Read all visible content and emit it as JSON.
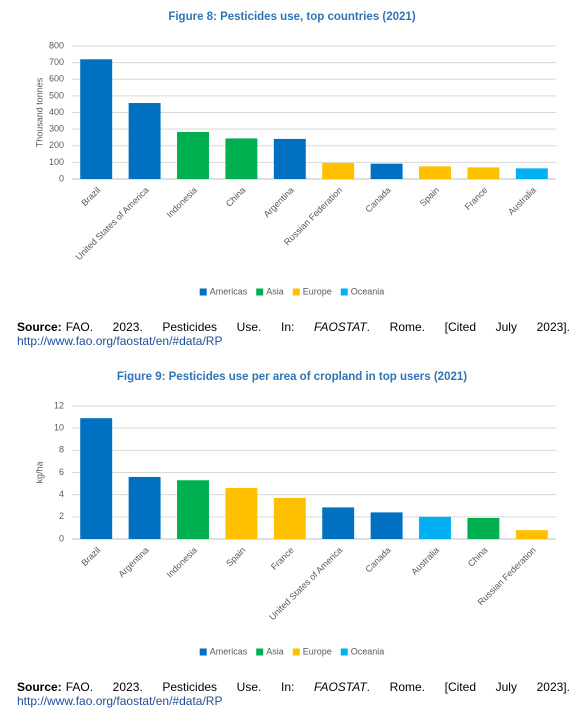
{
  "chart_data": [
    {
      "type": "bar",
      "title": "Figure 8: Pesticides use, top countries (2021)",
      "ylabel": "Thousand tonnes",
      "categories": [
        "Brazil",
        "United States of America",
        "Indonesia",
        "China",
        "Argentina",
        "Russian Federation",
        "Canada",
        "Spain",
        "France",
        "Australia"
      ],
      "series": [
        {
          "name": "Americas",
          "color": "#0070c0",
          "values": [
            720,
            457,
            null,
            null,
            241,
            null,
            92,
            null,
            null,
            null
          ]
        },
        {
          "name": "Asia",
          "color": "#00b050",
          "values": [
            null,
            null,
            283,
            244,
            null,
            null,
            null,
            null,
            null,
            null
          ]
        },
        {
          "name": "Europe",
          "color": "#ffc000",
          "values": [
            null,
            null,
            null,
            null,
            null,
            97,
            null,
            76,
            70,
            null
          ]
        },
        {
          "name": "Oceania",
          "color": "#00b0f0",
          "values": [
            null,
            null,
            null,
            null,
            null,
            null,
            null,
            null,
            null,
            64
          ]
        }
      ],
      "ylim": [
        0,
        800
      ],
      "yticks": [
        0,
        100,
        200,
        300,
        400,
        500,
        600,
        700,
        800
      ],
      "grid": true,
      "legend": "bottom",
      "source": {
        "label": "Source:",
        "text": "FAO. 2023. Pesticides Use. In:",
        "italic": "FAOSTAT",
        "text2": ". Rome. [Cited July 2023].",
        "url": "http://www.fao.org/faostat/en/#data/RP"
      }
    },
    {
      "type": "bar",
      "title": "Figure 9: Pesticides use per area of cropland in top users (2021)",
      "ylabel": "kg/ha",
      "categories": [
        "Brazil",
        "Argentina",
        "Indonesia",
        "Spain",
        "France",
        "United States of America",
        "Canada",
        "Australia",
        "China",
        "Russian Federation"
      ],
      "series": [
        {
          "name": "Americas",
          "color": "#0070c0",
          "values": [
            10.9,
            5.6,
            null,
            null,
            null,
            2.85,
            2.4,
            null,
            null,
            null
          ]
        },
        {
          "name": "Asia",
          "color": "#00b050",
          "values": [
            null,
            null,
            5.3,
            null,
            null,
            null,
            null,
            null,
            1.9,
            null
          ]
        },
        {
          "name": "Europe",
          "color": "#ffc000",
          "values": [
            null,
            null,
            null,
            4.6,
            3.7,
            null,
            null,
            null,
            null,
            0.8
          ]
        },
        {
          "name": "Oceania",
          "color": "#00b0f0",
          "values": [
            null,
            null,
            null,
            null,
            null,
            null,
            null,
            2.0,
            null,
            null
          ]
        }
      ],
      "ylim": [
        0,
        12
      ],
      "yticks": [
        0,
        2,
        4,
        6,
        8,
        10,
        12
      ],
      "grid": true,
      "legend": "bottom",
      "source": {
        "label": "Source:",
        "text": "FAO. 2023. Pesticides Use. In:",
        "italic": "FAOSTAT",
        "text2": ". Rome. [Cited July 2023].",
        "url": "http://www.fao.org/faostat/en/#data/RP"
      }
    }
  ]
}
